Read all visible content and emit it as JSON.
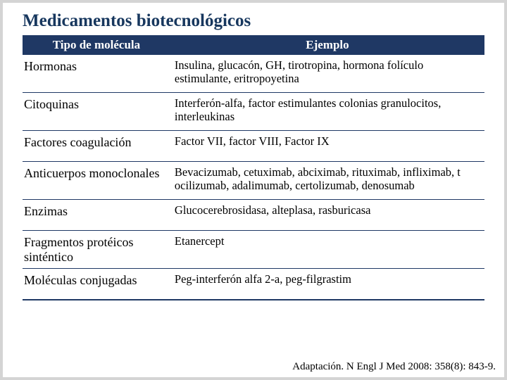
{
  "title": "Medicamentos biotecnológicos",
  "colors": {
    "title_color": "#17375e",
    "header_bg": "#1f3864",
    "header_fg": "#ffffff",
    "border": "#1f3864",
    "slide_bg": "#ffffff",
    "page_bg": "#d4d4d4"
  },
  "typography": {
    "title_fontsize": 25,
    "header_fontsize": 17,
    "body_fontsize": 16.5,
    "citation_fontsize": 15,
    "font_family": "Times New Roman"
  },
  "table": {
    "type": "table",
    "columns": [
      "Tipo de molécula",
      "Ejemplo"
    ],
    "column_widths_pct": [
      32,
      68
    ],
    "rows": [
      {
        "tipo": "Hormonas",
        "ejemplo": "Insulina, glucacón, GH, tirotropina, hormona folículo estimulante, eritropoyetina"
      },
      {
        "tipo": "Citoquinas",
        "ejemplo": "Interferón-alfa, factor estimulantes colonias granulocitos, interleukinas"
      },
      {
        "tipo": "Factores coagulación",
        "ejemplo": "Factor VII, factor VIII, Factor IX"
      },
      {
        "tipo": "Anticuerpos monoclonales",
        "ejemplo": "Bevacizumab, cetuximab, abciximab, rituximab, infliximab, t ocilizumab, adalimumab, certolizumab, denosumab"
      },
      {
        "tipo": "Enzimas",
        "ejemplo": "Glucocerebrosidasa, alteplasa, rasburicasa"
      },
      {
        "tipo": "Fragmentos protéicos sinténtico",
        "ejemplo": "Etanercept"
      },
      {
        "tipo": "Moléculas conjugadas",
        "ejemplo": "Peg-interferón alfa 2-a, peg-filgrastim"
      }
    ]
  },
  "citation": "Adaptación. N Engl J Med 2008: 358(8): 843-9."
}
